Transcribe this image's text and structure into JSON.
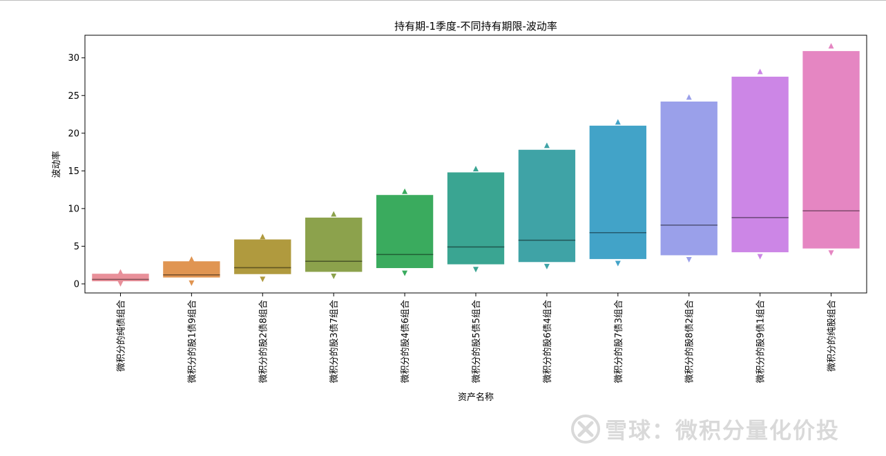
{
  "chart_data": {
    "type": "boxen",
    "title": "持有期-1季度-不同持有期限-波动率",
    "xlabel": "资产名称",
    "ylabel": "波动率",
    "ylim": [
      -1.2,
      33
    ],
    "yticks": [
      0,
      5,
      10,
      15,
      20,
      25,
      30
    ],
    "grid": false,
    "categories": [
      "微积分的纯债组合",
      "微积分的股1债9组合",
      "微积分的股2债8组合",
      "微积分的股3债7组合",
      "微积分的股4债6组合",
      "微积分的股5债5组合",
      "微积分的股6债4组合",
      "微积分的股7债3组合",
      "微积分的股8债2组合",
      "微积分的股9债1组合",
      "微积分的纯股组合"
    ],
    "colors": [
      "#e8909a",
      "#e09552",
      "#b09a3e",
      "#8ca24c",
      "#3aab5e",
      "#3aa592",
      "#3fa3a6",
      "#42a3c8",
      "#9aa0ea",
      "#cc86e6",
      "#e586c2"
    ],
    "series": [
      {
        "median": 0.6,
        "min": 0.35,
        "max": 1.35,
        "outlier_low": 0.0,
        "outlier_high": 1.6
      },
      {
        "median": 1.2,
        "min": 0.85,
        "max": 3.0,
        "outlier_low": 0.1,
        "outlier_high": 3.3
      },
      {
        "median": 2.15,
        "min": 1.3,
        "max": 5.9,
        "outlier_low": 0.6,
        "outlier_high": 6.3
      },
      {
        "median": 3.0,
        "min": 1.6,
        "max": 8.8,
        "outlier_low": 1.0,
        "outlier_high": 9.3
      },
      {
        "median": 3.9,
        "min": 2.1,
        "max": 11.8,
        "outlier_low": 1.4,
        "outlier_high": 12.3
      },
      {
        "median": 4.9,
        "min": 2.6,
        "max": 14.8,
        "outlier_low": 1.9,
        "outlier_high": 15.3
      },
      {
        "median": 5.8,
        "min": 2.9,
        "max": 17.8,
        "outlier_low": 2.3,
        "outlier_high": 18.4
      },
      {
        "median": 6.8,
        "min": 3.3,
        "max": 21.0,
        "outlier_low": 2.7,
        "outlier_high": 21.5
      },
      {
        "median": 7.8,
        "min": 3.8,
        "max": 24.2,
        "outlier_low": 3.2,
        "outlier_high": 24.8
      },
      {
        "median": 8.8,
        "min": 4.2,
        "max": 27.5,
        "outlier_low": 3.6,
        "outlier_high": 28.2
      },
      {
        "median": 9.7,
        "min": 4.7,
        "max": 30.9,
        "outlier_low": 4.1,
        "outlier_high": 31.6
      }
    ]
  },
  "watermark": {
    "text": "雪球：微积分量化价投",
    "color": "#d9d9d9",
    "icon": "xueqiu-logo-icon"
  }
}
